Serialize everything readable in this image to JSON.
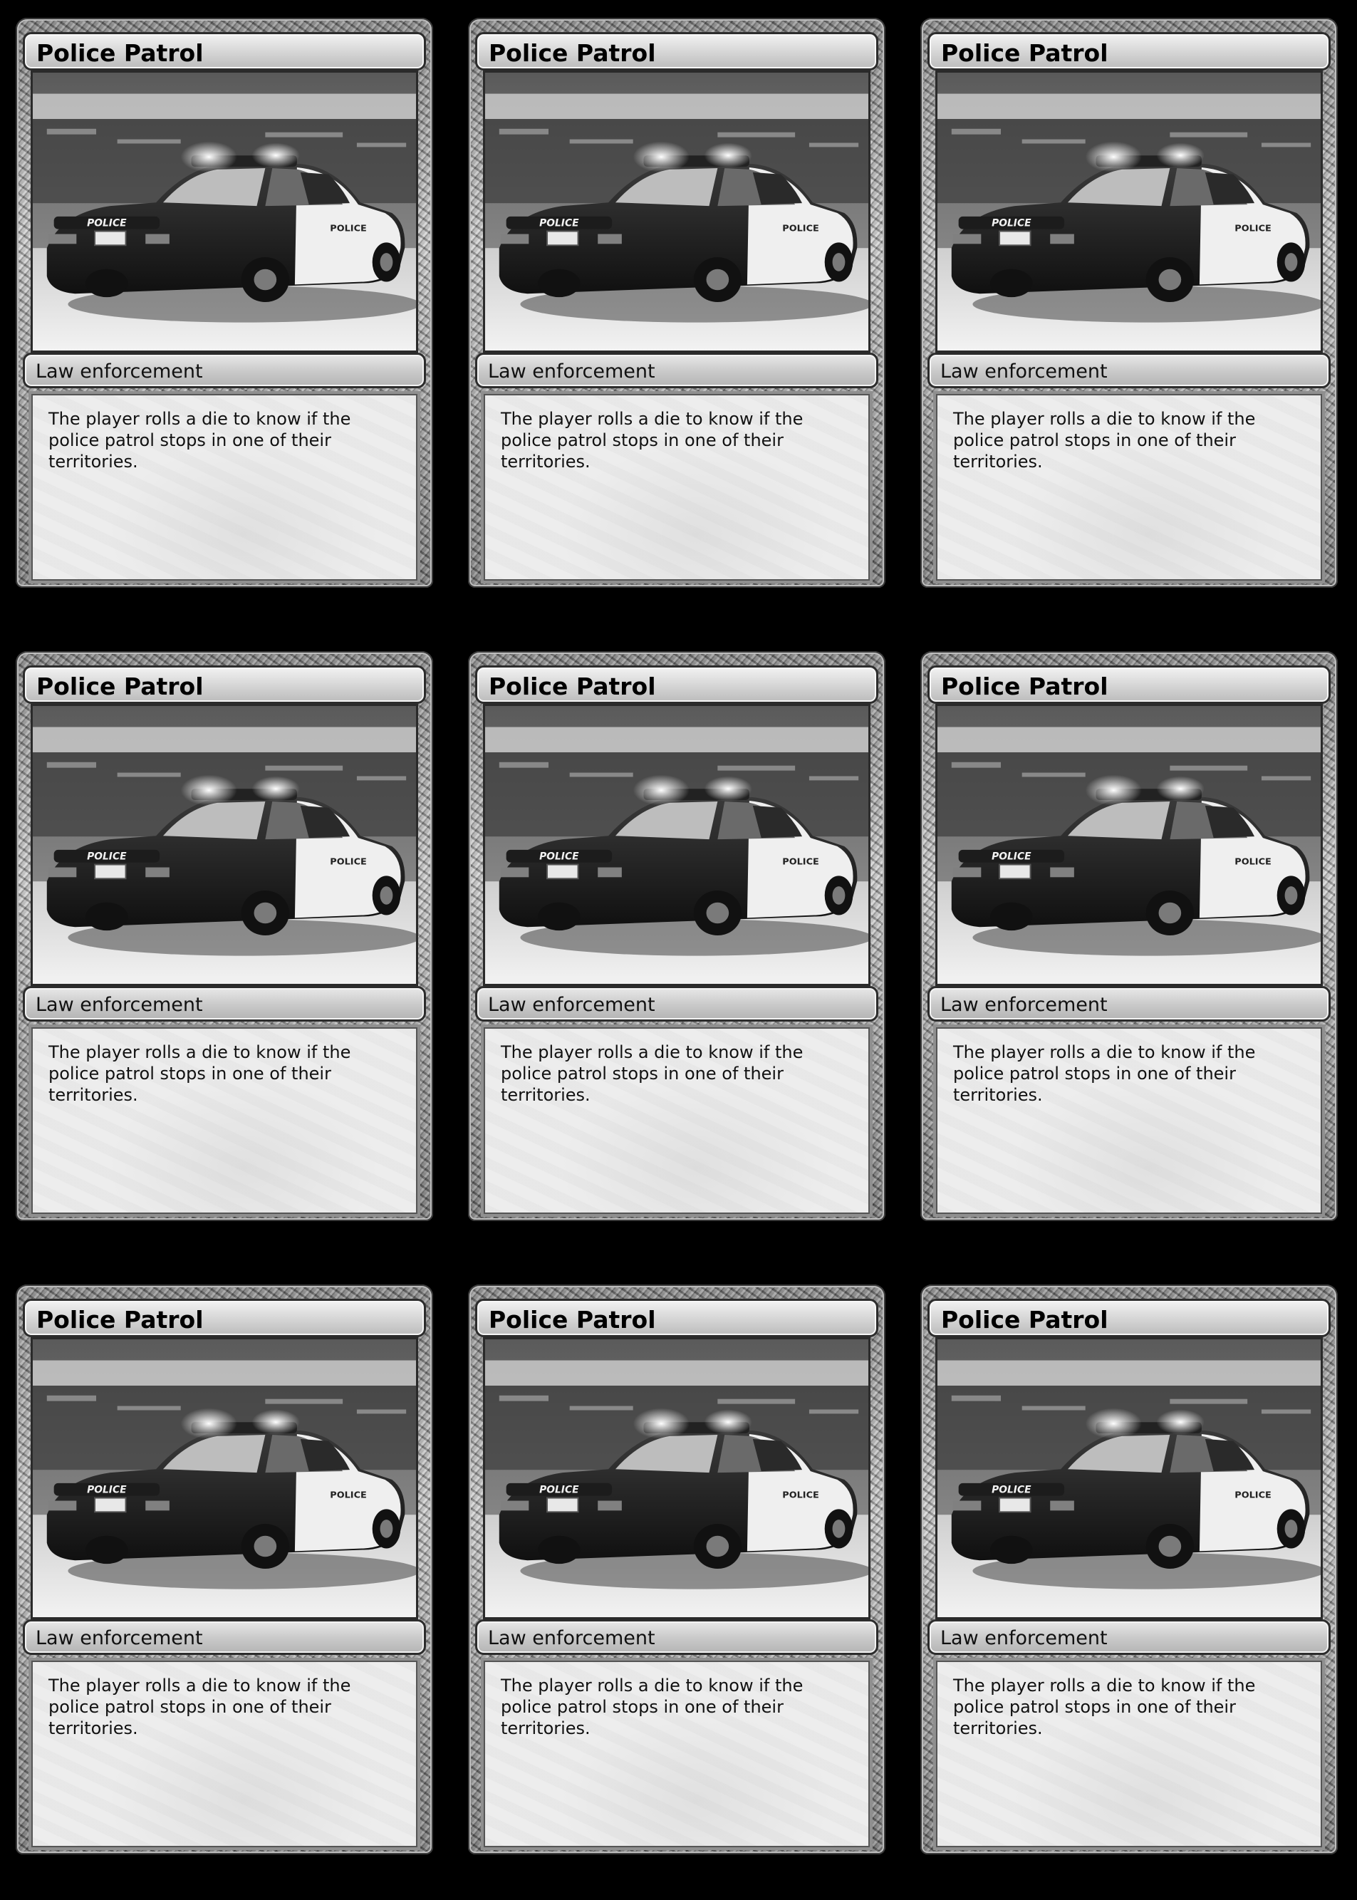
{
  "cards": [
    {
      "title": "Police Patrol",
      "type_line": "Law enforcement",
      "rules_text": "The player rolls a die to know if the police patrol stops in one of their territories."
    },
    {
      "title": "Police Patrol",
      "type_line": "Law enforcement",
      "rules_text": "The player rolls a die to know if the police patrol stops in one of their territories."
    },
    {
      "title": "Police Patrol",
      "type_line": "Law enforcement",
      "rules_text": "The player rolls a die to know if the police patrol stops in one of their territories."
    },
    {
      "title": "Police Patrol",
      "type_line": "Law enforcement",
      "rules_text": "The player rolls a die to know if the police patrol stops in one of their territories."
    },
    {
      "title": "Police Patrol",
      "type_line": "Law enforcement",
      "rules_text": "The player rolls a die to know if the police patrol stops in one of their territories."
    },
    {
      "title": "Police Patrol",
      "type_line": "Law enforcement",
      "rules_text": "The player rolls a die to know if the police patrol stops in one of their territories."
    },
    {
      "title": "Police Patrol",
      "type_line": "Law enforcement",
      "rules_text": "The player rolls a die to know if the police patrol stops in one of their territories."
    },
    {
      "title": "Police Patrol",
      "type_line": "Law enforcement",
      "rules_text": "The player rolls a die to know if the police patrol stops in one of their territories."
    },
    {
      "title": "Police Patrol",
      "type_line": "Law enforcement",
      "rules_text": "The player rolls a die to know if the police patrol stops in one of their territories."
    }
  ],
  "art_text": {
    "rear": "POLICE",
    "side": "POLICE"
  },
  "colors": {
    "background": "#000000",
    "frame": "#9a9a9a",
    "text_box": "#ededed"
  }
}
